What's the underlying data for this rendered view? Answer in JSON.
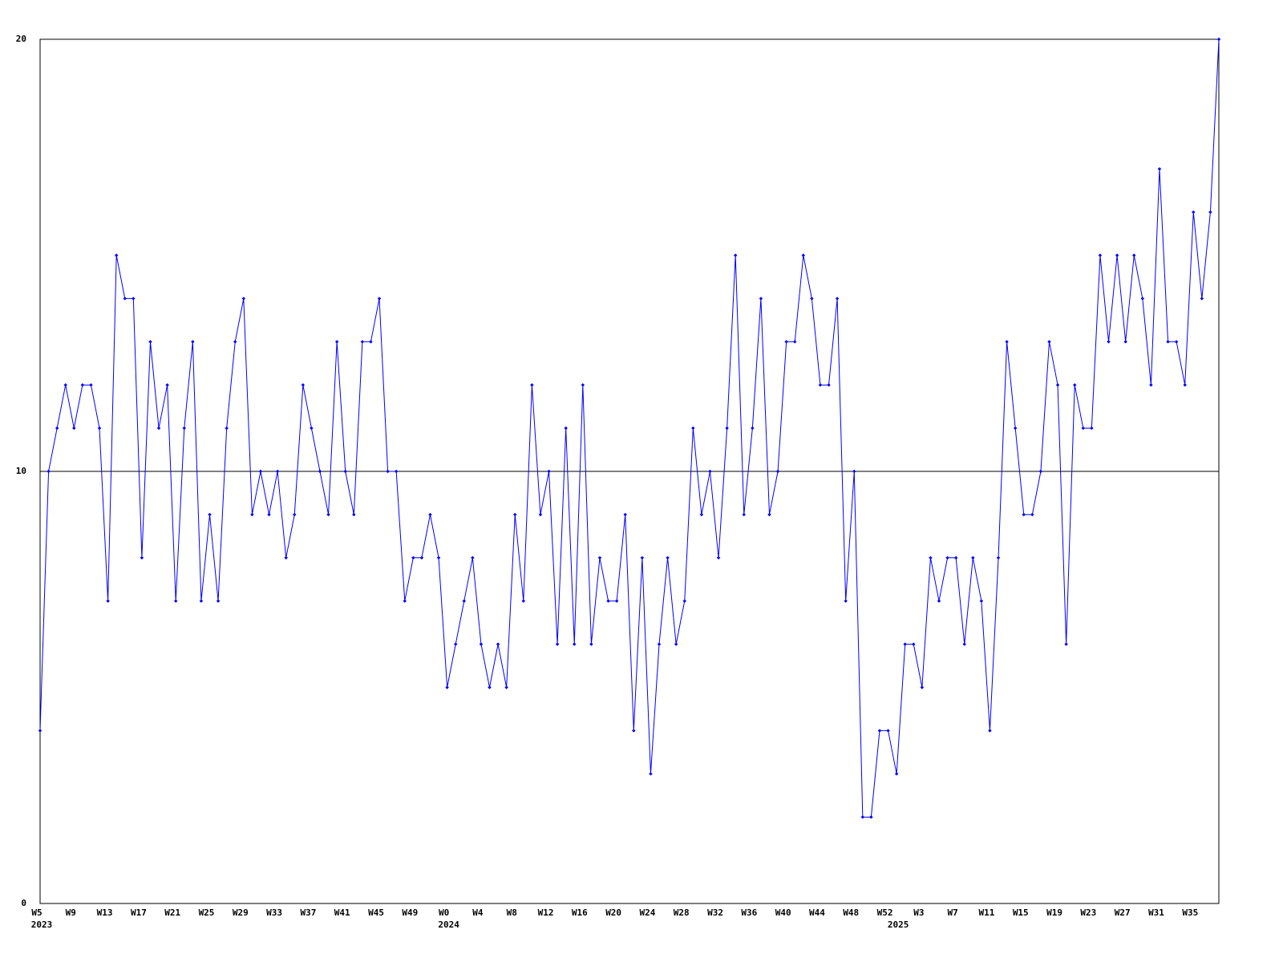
{
  "chart_data": {
    "type": "line",
    "categories": [
      "W5",
      null,
      null,
      null,
      "W9",
      null,
      null,
      null,
      "W13",
      null,
      null,
      null,
      "W17",
      null,
      null,
      null,
      "W21",
      null,
      null,
      null,
      "W25",
      null,
      null,
      null,
      "W29",
      null,
      null,
      null,
      "W33",
      null,
      null,
      null,
      "W37",
      null,
      null,
      null,
      "W41",
      null,
      null,
      null,
      "W45",
      null,
      null,
      null,
      "W49",
      null,
      null,
      null,
      "W0",
      null,
      null,
      null,
      "W4",
      null,
      null,
      null,
      "W8",
      null,
      null,
      null,
      "W12",
      null,
      null,
      null,
      "W16",
      null,
      null,
      null,
      "W20",
      null,
      null,
      null,
      "W24",
      null,
      null,
      null,
      "W28",
      null,
      null,
      null,
      "W32",
      null,
      null,
      null,
      "W36",
      null,
      null,
      null,
      "W40",
      null,
      null,
      null,
      "W44",
      null,
      null,
      null,
      "W48",
      null,
      null,
      null,
      "W52",
      null,
      null,
      null,
      "W3",
      null,
      null,
      null,
      "W7",
      null,
      null,
      null,
      "W11",
      null,
      null,
      null,
      "W15",
      null,
      null,
      null,
      "W19",
      null,
      null,
      null,
      "W23",
      null,
      null,
      null,
      "W27",
      null,
      null,
      null,
      "W31",
      null,
      null,
      null,
      "W35",
      null,
      null,
      null
    ],
    "category_years": [
      "2023",
      null,
      null,
      null,
      null,
      null,
      null,
      null,
      null,
      null,
      null,
      null,
      null,
      null,
      null,
      null,
      null,
      null,
      null,
      null,
      null,
      null,
      null,
      null,
      null,
      null,
      null,
      null,
      null,
      null,
      null,
      null,
      null,
      null,
      null,
      null,
      null,
      null,
      null,
      null,
      null,
      null,
      null,
      null,
      null,
      null,
      null,
      null,
      "2024",
      null,
      null,
      null,
      null,
      null,
      null,
      null,
      null,
      null,
      null,
      null,
      null,
      null,
      null,
      null,
      null,
      null,
      null,
      null,
      null,
      null,
      null,
      null,
      null,
      null,
      null,
      null,
      null,
      null,
      null,
      null,
      null,
      null,
      null,
      null,
      null,
      null,
      null,
      null,
      null,
      null,
      null,
      null,
      null,
      null,
      null,
      null,
      null,
      null,
      null,
      null,
      null,
      "2025",
      null,
      null,
      null,
      null,
      null,
      null,
      null,
      null,
      null,
      null,
      null,
      null,
      null,
      null,
      null,
      null,
      null,
      null,
      null,
      null,
      null,
      null,
      null,
      null,
      null,
      null,
      null,
      null,
      null,
      null,
      null,
      null,
      null,
      null,
      null,
      null,
      null
    ],
    "values": [
      4,
      10,
      11,
      12,
      11,
      12,
      12,
      11,
      7,
      15,
      14,
      14,
      8,
      13,
      11,
      12,
      7,
      11,
      13,
      7,
      9,
      7,
      11,
      13,
      14,
      9,
      10,
      9,
      10,
      8,
      9,
      12,
      11,
      10,
      9,
      13,
      10,
      9,
      13,
      13,
      14,
      10,
      10,
      7,
      8,
      8,
      9,
      8,
      5,
      6,
      7,
      8,
      6,
      5,
      6,
      5,
      9,
      7,
      12,
      9,
      10,
      6,
      11,
      6,
      12,
      6,
      8,
      7,
      7,
      9,
      4,
      8,
      3,
      6,
      8,
      6,
      7,
      11,
      9,
      10,
      8,
      11,
      15,
      9,
      11,
      14,
      9,
      10,
      13,
      13,
      15,
      14,
      12,
      12,
      14,
      7,
      10,
      2,
      2,
      4,
      4,
      3,
      6,
      6,
      5,
      8,
      7,
      8,
      8,
      6,
      8,
      7,
      4,
      8,
      13,
      11,
      9,
      9,
      10,
      13,
      12,
      6,
      12,
      11,
      11,
      15,
      13,
      15,
      13,
      15,
      14,
      12,
      17,
      13,
      13,
      12,
      16,
      14,
      16,
      20
    ],
    "color": "#0000ff",
    "ylim": [
      0,
      20
    ],
    "yticks": [
      0,
      10,
      20
    ],
    "grid": true
  }
}
